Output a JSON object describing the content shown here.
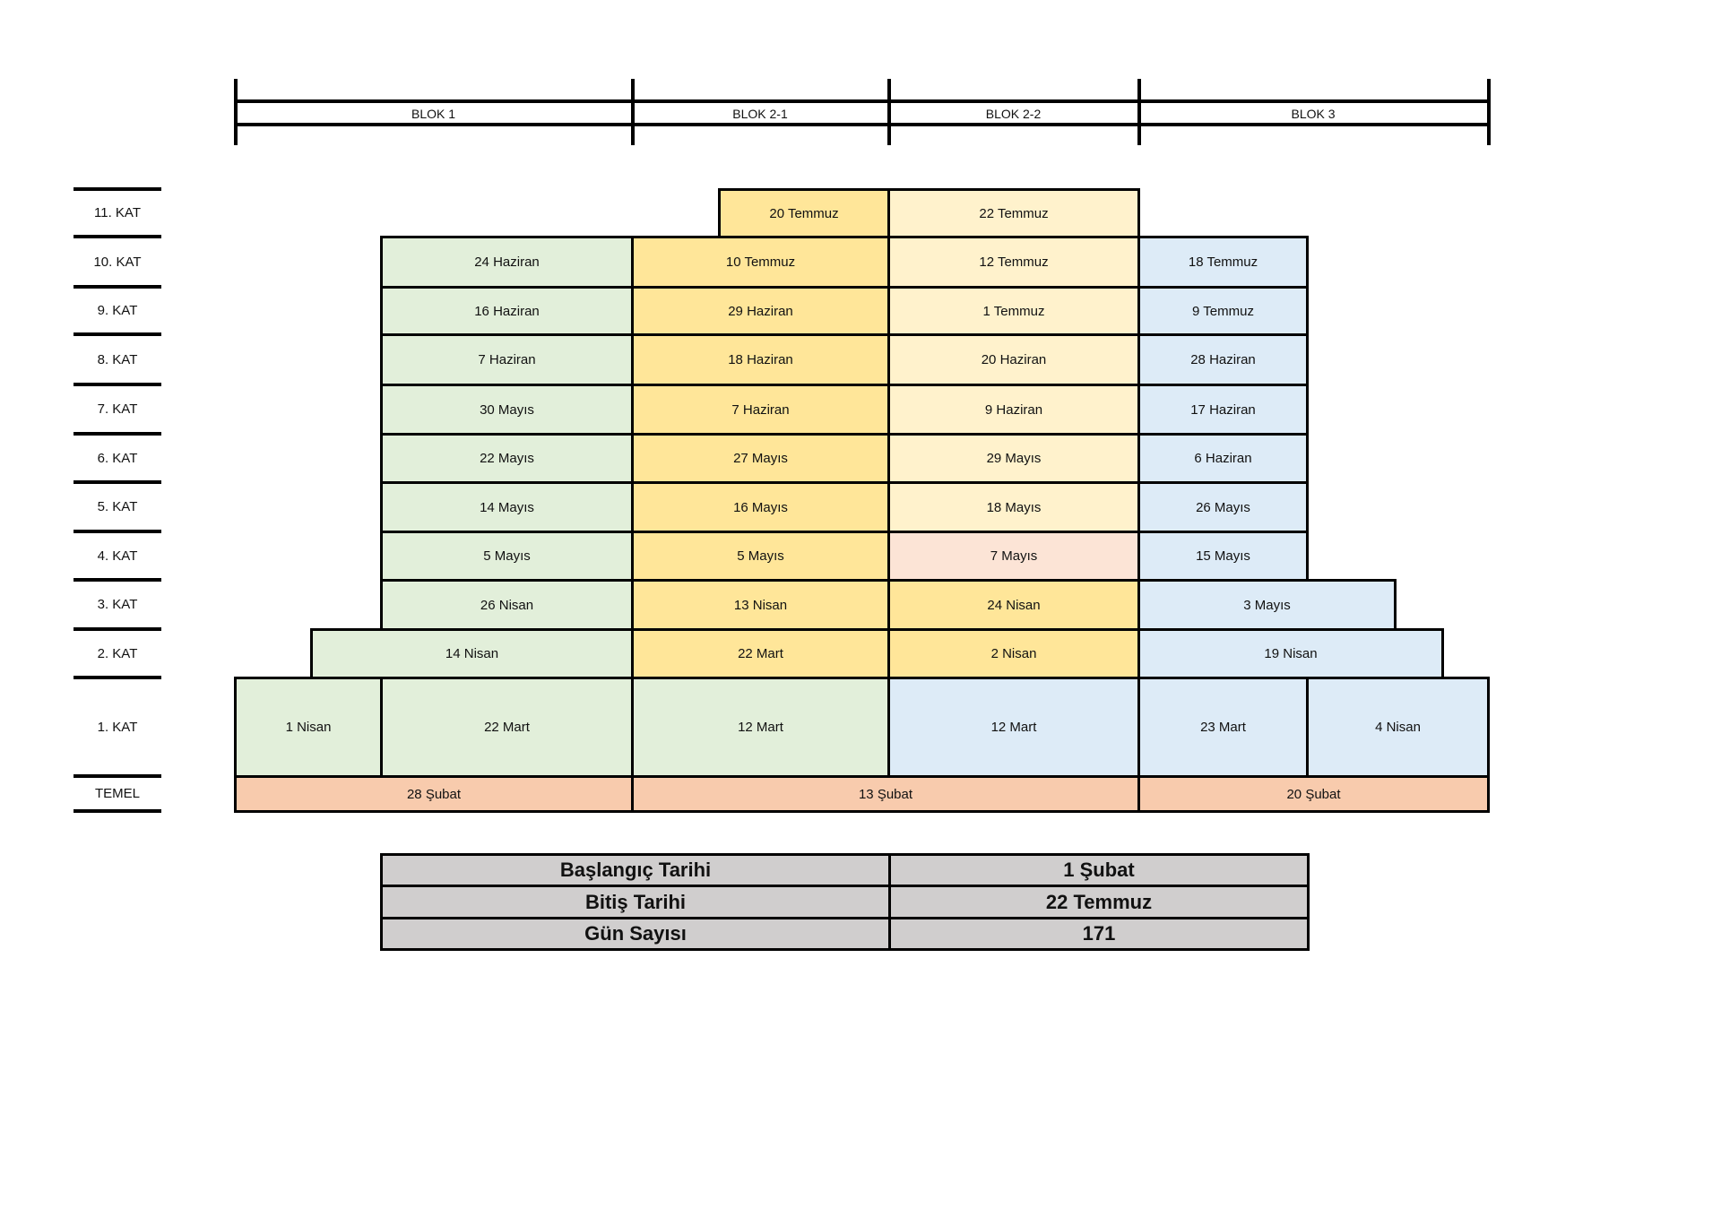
{
  "colors": {
    "green": "#e2efda",
    "yellow": "#ffe699",
    "light_yellow": "#fff2cc",
    "blue": "#ddebf7",
    "pink": "#fce4d6",
    "salmon": "#f8cbad",
    "gray": "#d0cece"
  },
  "blocks": [
    "BLOK 1",
    "BLOK 2-1",
    "BLOK 2-2",
    "BLOK 3"
  ],
  "floors": [
    {
      "label": "11. KAT",
      "cells": [
        {
          "text": "20 Temmuz",
          "color": "yellow"
        },
        {
          "text": "22 Temmuz",
          "color": "light_yellow"
        }
      ]
    },
    {
      "label": "10. KAT",
      "cells": [
        {
          "text": "24 Haziran",
          "color": "green"
        },
        {
          "text": "10 Temmuz",
          "color": "yellow"
        },
        {
          "text": "12 Temmuz",
          "color": "light_yellow"
        },
        {
          "text": "18 Temmuz",
          "color": "blue"
        }
      ]
    },
    {
      "label": "9. KAT",
      "cells": [
        {
          "text": "16 Haziran",
          "color": "green"
        },
        {
          "text": "29 Haziran",
          "color": "yellow"
        },
        {
          "text": "1 Temmuz",
          "color": "light_yellow"
        },
        {
          "text": "9 Temmuz",
          "color": "blue"
        }
      ]
    },
    {
      "label": "8. KAT",
      "cells": [
        {
          "text": "7 Haziran",
          "color": "green"
        },
        {
          "text": "18 Haziran",
          "color": "yellow"
        },
        {
          "text": "20 Haziran",
          "color": "light_yellow"
        },
        {
          "text": "28 Haziran",
          "color": "blue"
        }
      ]
    },
    {
      "label": "7. KAT",
      "cells": [
        {
          "text": "30 Mayıs",
          "color": "green"
        },
        {
          "text": "7 Haziran",
          "color": "yellow"
        },
        {
          "text": "9 Haziran",
          "color": "light_yellow"
        },
        {
          "text": "17 Haziran",
          "color": "blue"
        }
      ]
    },
    {
      "label": "6. KAT",
      "cells": [
        {
          "text": "22 Mayıs",
          "color": "green"
        },
        {
          "text": "27 Mayıs",
          "color": "yellow"
        },
        {
          "text": "29 Mayıs",
          "color": "light_yellow"
        },
        {
          "text": "6 Haziran",
          "color": "blue"
        }
      ]
    },
    {
      "label": "5. KAT",
      "cells": [
        {
          "text": "14 Mayıs",
          "color": "green"
        },
        {
          "text": "16 Mayıs",
          "color": "yellow"
        },
        {
          "text": "18 Mayıs",
          "color": "light_yellow"
        },
        {
          "text": "26 Mayıs",
          "color": "blue"
        }
      ]
    },
    {
      "label": "4. KAT",
      "cells": [
        {
          "text": "5 Mayıs",
          "color": "green"
        },
        {
          "text": "5 Mayıs",
          "color": "yellow"
        },
        {
          "text": "7 Mayıs",
          "color": "pink"
        },
        {
          "text": "15 Mayıs",
          "color": "blue"
        }
      ]
    },
    {
      "label": "3. KAT",
      "cells": [
        {
          "text": "26 Nisan",
          "color": "green"
        },
        {
          "text": "13 Nisan",
          "color": "yellow"
        },
        {
          "text": "24 Nisan",
          "color": "yellow"
        },
        {
          "text": "3 Mayıs",
          "color": "blue"
        }
      ]
    },
    {
      "label": "2. KAT",
      "cells": [
        {
          "text": "14 Nisan",
          "color": "green"
        },
        {
          "text": "22 Mart",
          "color": "yellow"
        },
        {
          "text": "2 Nisan",
          "color": "yellow"
        },
        {
          "text": "19 Nisan",
          "color": "blue"
        }
      ]
    },
    {
      "label": "1. KAT",
      "cells": [
        {
          "text": "1 Nisan",
          "color": "green"
        },
        {
          "text": "22 Mart",
          "color": "green"
        },
        {
          "text": "12 Mart",
          "color": "green"
        },
        {
          "text": "12 Mart",
          "color": "blue"
        },
        {
          "text": "23 Mart",
          "color": "blue"
        },
        {
          "text": "4 Nisan",
          "color": "blue"
        }
      ]
    },
    {
      "label": "TEMEL",
      "cells": [
        {
          "text": "28 Şubat",
          "color": "salmon"
        },
        {
          "text": "13 Şubat",
          "color": "salmon"
        },
        {
          "text": "20 Şubat",
          "color": "salmon"
        }
      ]
    }
  ],
  "summary": [
    {
      "label": "Başlangıç Tarihi",
      "value": "1 Şubat"
    },
    {
      "label": "Bitiş Tarihi",
      "value": "22 Temmuz"
    },
    {
      "label": "Gün Sayısı",
      "value": "171"
    }
  ]
}
